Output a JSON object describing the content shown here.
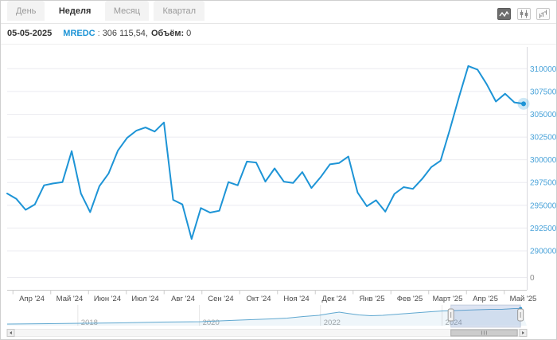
{
  "toolbar": {
    "tabs": [
      {
        "label": "День",
        "active": false
      },
      {
        "label": "Неделя",
        "active": true
      },
      {
        "label": "Месяц",
        "active": false
      },
      {
        "label": "Квартал",
        "active": false
      }
    ],
    "chart_type_buttons": [
      {
        "icon": "line-chart-icon",
        "active": true
      },
      {
        "icon": "candlestick-chart-icon",
        "active": false
      },
      {
        "icon": "ohlc-chart-icon",
        "active": false
      }
    ]
  },
  "legend": {
    "date": "05-05-2025",
    "symbol": "MREDC",
    "separator": ":",
    "price": "306 115,54,",
    "volume_label": "Объём:",
    "volume_value": "0"
  },
  "chart_data": {
    "type": "line",
    "title": "",
    "series_name": "MREDC",
    "interval": "weekly",
    "x_labels": [
      "Апр '24",
      "Май '24",
      "Июн '24",
      "Июл '24",
      "Авг '24",
      "Сен '24",
      "Окт '24",
      "Ноя '24",
      "Дек '24",
      "Янв '25",
      "Фев '25",
      "Март '25",
      "Апр '25",
      "Май '25"
    ],
    "y_ticks": [
      310000,
      307500,
      305000,
      302500,
      300000,
      297500,
      295000,
      292500,
      290000
    ],
    "ylim": [
      289000,
      312000
    ],
    "values": [
      296300,
      295700,
      294500,
      295100,
      297200,
      297400,
      297550,
      300950,
      296300,
      294250,
      297100,
      298500,
      301000,
      302400,
      303200,
      303550,
      303100,
      304100,
      295600,
      295100,
      291300,
      294700,
      294200,
      294400,
      297550,
      297200,
      299800,
      299700,
      297600,
      299050,
      297600,
      297450,
      298650,
      296900,
      298100,
      299500,
      299650,
      300350,
      296400,
      294900,
      295550,
      294300,
      296250,
      297000,
      296800,
      297900,
      299200,
      299900,
      303300,
      306900,
      310300,
      309900,
      308300,
      306400,
      307250,
      306300,
      306150
    ],
    "last_value": 306115.54,
    "volume_axis_label": "0",
    "line_color": "#1d94d6",
    "y_label_color": "#4aa3d9",
    "grid": true,
    "legend_position": "none",
    "navigator": {
      "year_labels": [
        "2018",
        "2020",
        "2022",
        "2024"
      ],
      "year_fractions": [
        0.136,
        0.37,
        0.603,
        0.837
      ],
      "sparkline": [
        [
          0.0,
          0.857
        ],
        [
          0.08,
          0.839
        ],
        [
          0.141,
          0.821
        ],
        [
          0.217,
          0.804
        ],
        [
          0.294,
          0.768
        ],
        [
          0.371,
          0.75
        ],
        [
          0.447,
          0.679
        ],
        [
          0.508,
          0.625
        ],
        [
          0.539,
          0.589
        ],
        [
          0.57,
          0.518
        ],
        [
          0.6,
          0.464
        ],
        [
          0.623,
          0.375
        ],
        [
          0.639,
          0.321
        ],
        [
          0.654,
          0.375
        ],
        [
          0.677,
          0.446
        ],
        [
          0.7,
          0.482
        ],
        [
          0.723,
          0.464
        ],
        [
          0.753,
          0.411
        ],
        [
          0.784,
          0.357
        ],
        [
          0.815,
          0.304
        ],
        [
          0.838,
          0.268
        ],
        [
          0.861,
          0.25
        ],
        [
          0.883,
          0.232
        ],
        [
          0.906,
          0.214
        ],
        [
          0.929,
          0.196
        ],
        [
          0.952,
          0.196
        ],
        [
          0.975,
          0.161
        ],
        [
          0.988,
          0.161
        ]
      ],
      "selection": {
        "from": 0.854,
        "to": 0.988
      },
      "line_color": "#60a8d0",
      "mask_color": "rgba(102,133,194,0.22)"
    }
  }
}
